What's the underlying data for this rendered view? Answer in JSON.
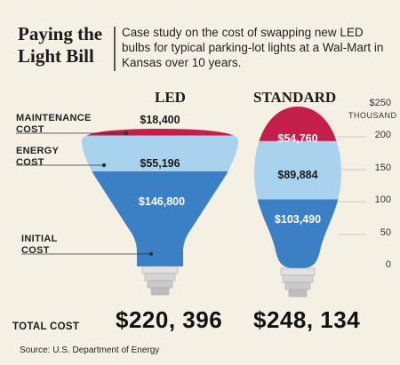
{
  "header": {
    "title": "Paying the Light Bill",
    "subtitle": "Case study on the cost of swapping new LED bulbs for typical parking-lot lights at a Wal-Mart in Kansas over 10 years."
  },
  "chart_data": {
    "type": "bar",
    "stacked": true,
    "categories": [
      "LED",
      "STANDARD"
    ],
    "series": [
      {
        "name": "INITIAL COST",
        "values": [
          146800,
          103490
        ],
        "labels": [
          "$146,800",
          "$103,490"
        ]
      },
      {
        "name": "ENERGY COST",
        "values": [
          55196,
          89884
        ],
        "labels": [
          "$55,196",
          "$89,884"
        ]
      },
      {
        "name": "MAINTENANCE COST",
        "values": [
          18400,
          54760
        ],
        "labels": [
          "$18,400",
          "$54,760"
        ]
      }
    ],
    "totals": [
      220396,
      248134
    ],
    "total_labels": [
      "$220, 396",
      "$248, 134"
    ],
    "total_label": "TOTAL COST",
    "yticks": [
      "$250",
      "200",
      "150",
      "100",
      "50",
      "0"
    ],
    "yunit": "THOUSAND",
    "ylim": [
      0,
      250000
    ],
    "colors": {
      "initial": "#3b7fc4",
      "energy": "#a9d2ee",
      "maintenance": "#c41e4a",
      "led_text_light": "#ffffff",
      "dark_text": "#1a1a1a"
    },
    "side_labels": {
      "maintenance": "MAINTENANCE COST",
      "energy": "ENERGY COST",
      "initial": "INITIAL COST"
    },
    "source": "Source: U.S. Department of Energy"
  }
}
